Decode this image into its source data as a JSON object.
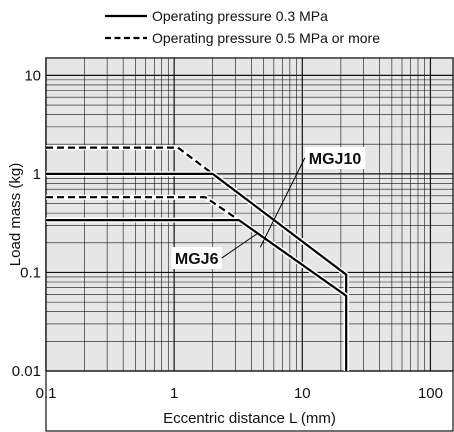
{
  "chart_data": {
    "type": "line",
    "xlabel": "Eccentric distance L (mm)",
    "ylabel": "Load mass (kg)",
    "xscale": "log",
    "yscale": "log",
    "xlim": [
      0.1,
      150
    ],
    "ylim": [
      0.01,
      15
    ],
    "grid": true,
    "background_color": "#e6e6e6",
    "xticks": [
      {
        "value": 0.1,
        "label": "0.1"
      },
      {
        "value": 1,
        "label": "1"
      },
      {
        "value": 10,
        "label": "10"
      },
      {
        "value": 100,
        "label": "100"
      }
    ],
    "yticks": [
      {
        "value": 0.01,
        "label": "0.01"
      },
      {
        "value": 0.1,
        "label": "0.1"
      },
      {
        "value": 1,
        "label": "1"
      },
      {
        "value": 10,
        "label": "10"
      }
    ],
    "legend": {
      "placement": "top",
      "entries": [
        {
          "label": "Operating pressure 0.3 MPa",
          "style": "solid"
        },
        {
          "label": "Operating pressure 0.5 MPa or more",
          "style": "dashed"
        }
      ]
    },
    "series": [
      {
        "model": "MGJ10",
        "style": "dashed",
        "x": [
          0.1,
          1.07,
          2.0,
          22.0,
          22.0
        ],
        "y": [
          1.85,
          1.85,
          1.0,
          0.095,
          0.01
        ]
      },
      {
        "model": "MGJ10",
        "style": "solid",
        "x": [
          0.1,
          2.0,
          22.0,
          22.0
        ],
        "y": [
          1.0,
          1.0,
          0.095,
          0.01
        ]
      },
      {
        "model": "MGJ6",
        "style": "dashed",
        "x": [
          0.1,
          1.75,
          3.2
        ],
        "y": [
          0.58,
          0.58,
          0.34
        ]
      },
      {
        "model": "MGJ6",
        "style": "solid",
        "x": [
          0.1,
          3.2,
          22.0,
          22.0
        ],
        "y": [
          0.34,
          0.34,
          0.058,
          0.01
        ]
      }
    ],
    "annotations": [
      {
        "text": "MGJ10",
        "x": 18,
        "y": 1.45,
        "pointer_to": {
          "x": 4.7,
          "y": 0.18
        }
      },
      {
        "text": "MGJ6",
        "x": 1.5,
        "y": 0.14,
        "pointer_to": {
          "x": 4.5,
          "y": 0.25
        }
      }
    ]
  }
}
